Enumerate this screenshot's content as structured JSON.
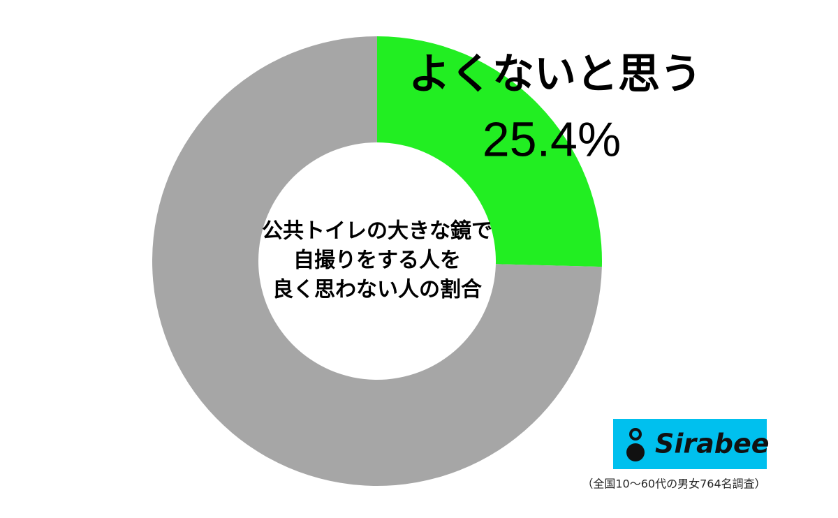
{
  "chart_data": {
    "type": "donut",
    "categories": [
      "よくないと思う",
      null
    ],
    "values": [
      25.4,
      74.6
    ],
    "value_labels": [
      "25.4%",
      null
    ],
    "colors": [
      "#22ee22",
      "#a6a6a6"
    ],
    "center_text": [
      "公共トイレの大きな鏡で",
      "自撮りをする人を",
      "良く思わない人の割合"
    ],
    "logo": "Sirabee",
    "note": "（全国10〜60代の男女764名調査）"
  }
}
